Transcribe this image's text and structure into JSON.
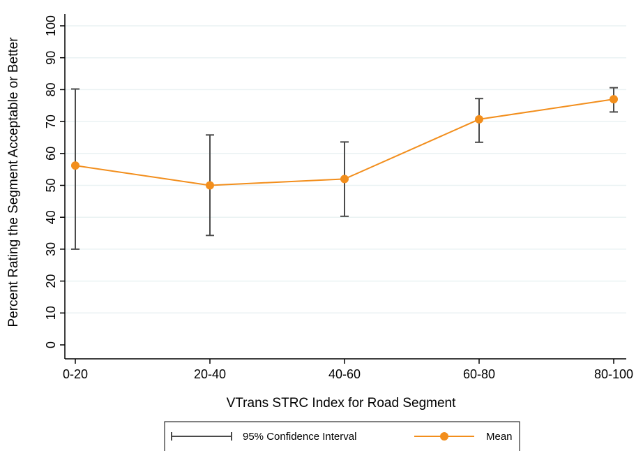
{
  "chart_data": {
    "type": "line",
    "categories": [
      "0-20",
      "20-40",
      "40-60",
      "60-80",
      "80-100"
    ],
    "series": [
      {
        "name": "Mean",
        "values": [
          56.2,
          50.0,
          52.0,
          70.7,
          77.0
        ],
        "color": "#f28e1c"
      }
    ],
    "confidence_interval": {
      "name": "95% Confidence Interval",
      "lower": [
        30.0,
        34.3,
        40.3,
        63.5,
        73.0
      ],
      "upper": [
        80.2,
        65.8,
        63.6,
        77.2,
        80.6
      ],
      "color": "#4a4a4a"
    },
    "xlabel": "VTrans STRC Index for Road Segment",
    "ylabel": "Percent Rating the Segment Acceptable or Better",
    "ylim": [
      0,
      100
    ],
    "yticks": [
      0,
      10,
      20,
      30,
      40,
      50,
      60,
      70,
      80,
      90,
      100
    ],
    "grid": true,
    "legend": {
      "position": "bottom",
      "entries": [
        "95% Confidence Interval",
        "Mean"
      ]
    }
  }
}
